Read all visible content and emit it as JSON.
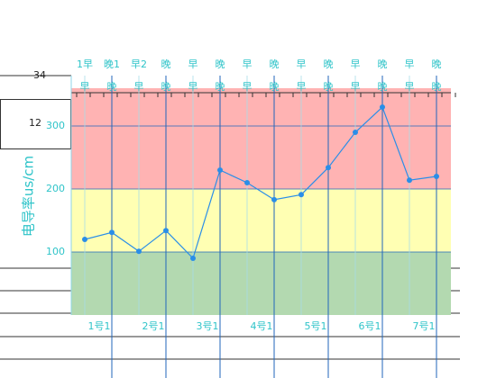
{
  "chart_data": {
    "type": "line",
    "y_label": "电导率us/cm",
    "annotations": [
      "34",
      "12"
    ],
    "top_labels_1": [
      "1早",
      "晚1",
      "早2",
      "晚",
      "早",
      "晚",
      "早",
      "晚",
      "早",
      "晚",
      "早",
      "晚",
      "早",
      "晚"
    ],
    "top_labels_2": [
      "早",
      "晚",
      "早",
      "晚",
      "早",
      "晚",
      "早",
      "晚",
      "早",
      "晚",
      "早",
      "晚",
      "早",
      "晚"
    ],
    "day_labels": [
      "1号1",
      "2号1",
      "3号1",
      "4号1",
      "5号1",
      "6号1",
      "7号1"
    ],
    "series": [
      {
        "color": "#2a8ee8",
        "values": [
          120,
          131,
          101,
          134,
          90,
          230,
          210,
          183,
          191,
          234,
          290,
          330,
          214,
          220
        ]
      }
    ],
    "bands": [
      {
        "from": 0,
        "to": 100,
        "color": "#b3d9b0"
      },
      {
        "from": 100,
        "to": 200,
        "color": "#ffffb3"
      },
      {
        "from": 200,
        "to": 360,
        "color": "#ffb3b3"
      }
    ],
    "ylim": [
      0,
      360
    ],
    "yticks": [
      100,
      200,
      300
    ],
    "grid": true
  }
}
